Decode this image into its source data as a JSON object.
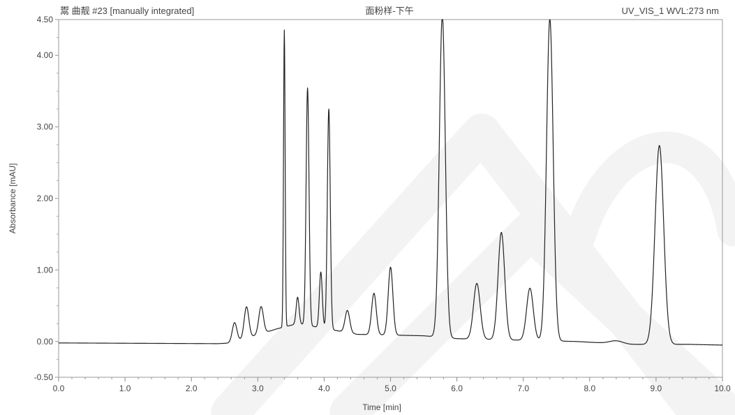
{
  "header": {
    "left": "鬻 曲靓 #23 [manually integrated]",
    "center": "面粉样-下午",
    "right": "UV_VIS_1 WVL:273 nm"
  },
  "chart_data": {
    "type": "line",
    "title": "面粉样-下午",
    "xlabel": "Time [min]",
    "ylabel": "Absorbance [mAU]",
    "xlim": [
      0.0,
      10.0
    ],
    "ylim": [
      -0.5,
      4.5
    ],
    "xticks": [
      "0.0",
      "1.0",
      "2.0",
      "3.0",
      "4.0",
      "5.0",
      "6.0",
      "7.0",
      "8.0",
      "9.0",
      "10.0"
    ],
    "yticks": [
      "-0.50",
      "0.00",
      "1.00",
      "2.00",
      "3.00",
      "4.00",
      "4.50"
    ],
    "grid": false,
    "baseline": [
      [
        0.0,
        -0.02
      ],
      [
        2.4,
        -0.03
      ],
      [
        2.6,
        -0.02
      ],
      [
        3.3,
        0.18
      ],
      [
        3.6,
        0.25
      ],
      [
        4.5,
        0.1
      ],
      [
        5.5,
        0.08
      ],
      [
        6.0,
        0.04
      ],
      [
        7.8,
        0.0
      ],
      [
        8.6,
        -0.04
      ],
      [
        9.5,
        -0.04
      ],
      [
        10.0,
        -0.05
      ]
    ],
    "peaks": [
      {
        "rt": 2.65,
        "height": 0.27
      },
      {
        "rt": 2.83,
        "height": 0.44
      },
      {
        "rt": 3.05,
        "height": 0.38
      },
      {
        "rt": 3.4,
        "height": 4.15
      },
      {
        "rt": 3.6,
        "height": 0.37
      },
      {
        "rt": 3.75,
        "height": 3.32
      },
      {
        "rt": 3.95,
        "height": 0.78
      },
      {
        "rt": 4.07,
        "height": 3.08
      },
      {
        "rt": 4.35,
        "height": 0.31
      },
      {
        "rt": 4.75,
        "height": 0.58
      },
      {
        "rt": 5.0,
        "height": 0.95
      },
      {
        "rt": 5.78,
        "height": 4.5
      },
      {
        "rt": 6.3,
        "height": 0.78
      },
      {
        "rt": 6.67,
        "height": 1.5
      },
      {
        "rt": 7.1,
        "height": 0.73
      },
      {
        "rt": 7.4,
        "height": 4.5
      },
      {
        "rt": 8.4,
        "height": 0.04
      },
      {
        "rt": 9.05,
        "height": 2.78
      }
    ]
  }
}
